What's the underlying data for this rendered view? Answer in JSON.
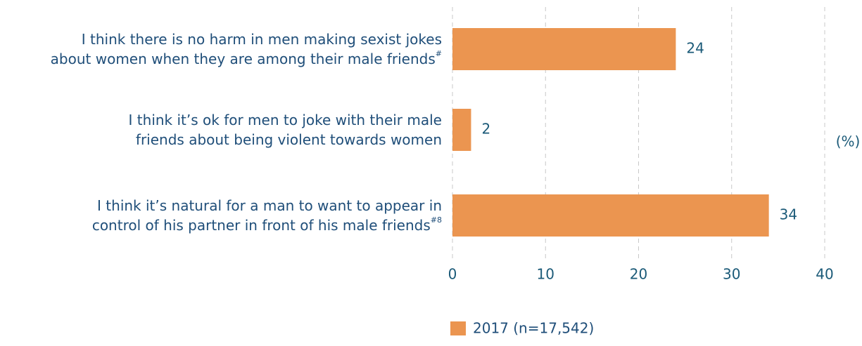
{
  "chart_data": {
    "type": "bar",
    "orientation": "horizontal",
    "categories": [
      [
        "I think there is no harm in men making sexist jokes",
        "about women when they are among their male friends"
      ],
      [
        "I think it’s ok for men to joke with their male",
        "friends about being violent towards women"
      ],
      [
        "I think it’s natural for a man to want to appear in",
        "control of his partner in front of his male friends"
      ]
    ],
    "category_notes": [
      "#",
      null,
      "#8"
    ],
    "series": [
      {
        "name": "2017 (n=17,542)",
        "color": "#eb9550",
        "values": [
          24,
          2,
          34
        ]
      }
    ],
    "xlim": [
      0,
      40
    ],
    "xticks": [
      0,
      10,
      20,
      30,
      40
    ],
    "axis_unit": "(%)",
    "grid": true
  }
}
